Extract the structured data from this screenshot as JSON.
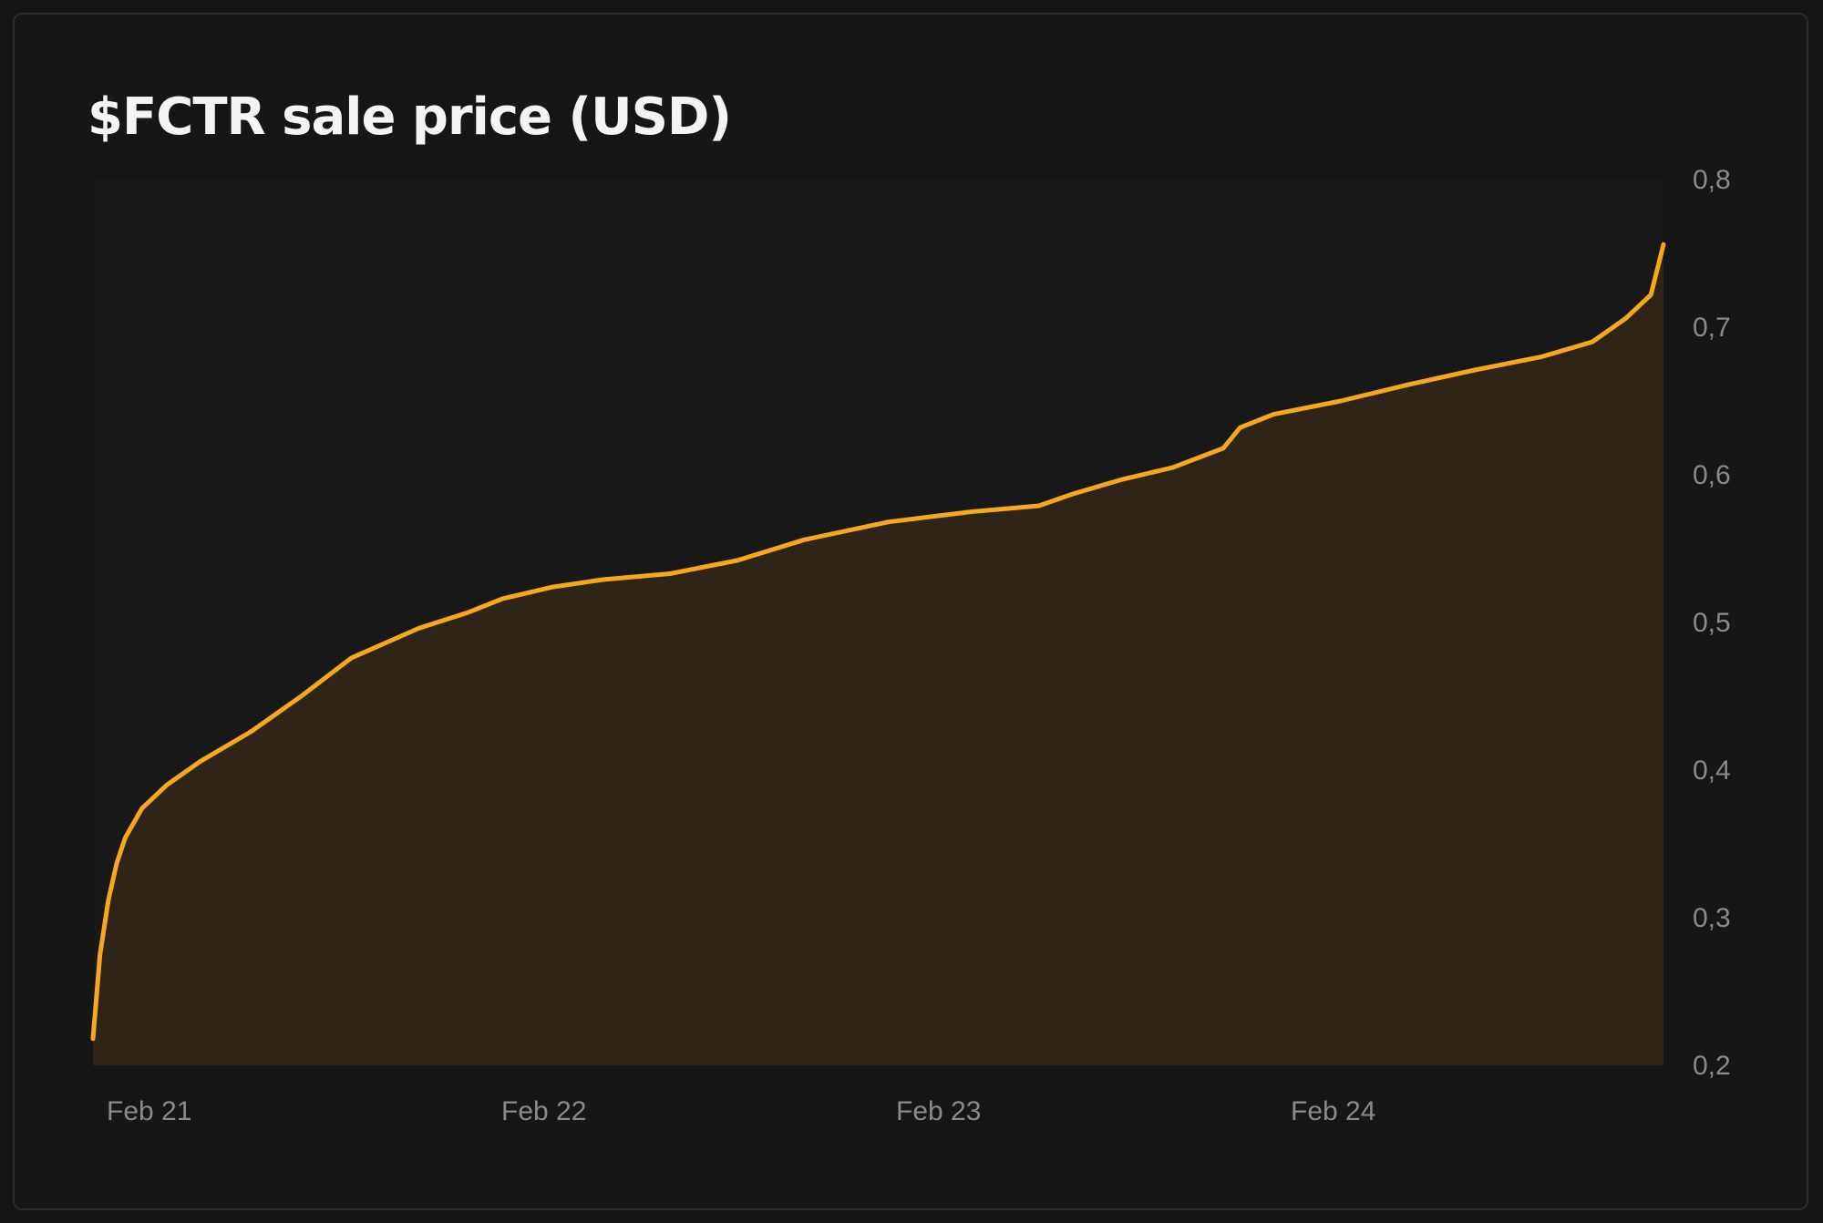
{
  "chart_data": {
    "type": "area",
    "title": "$FCTR sale price (USD)",
    "xlabel": "",
    "ylabel": "",
    "x_ticks": [
      "Feb 21",
      "Feb 22",
      "Feb 23",
      "Feb 24"
    ],
    "y_ticks": [
      "0,8",
      "0,7",
      "0,6",
      "0,5",
      "0,4",
      "0,3",
      "0,2"
    ],
    "ylim": [
      0.2,
      0.8
    ],
    "xlim": [
      "2024-02-20T23:35",
      "2024-02-24T21:15"
    ],
    "grid": false,
    "series": [
      {
        "color": "#f6a71b",
        "fill": "#2e2418",
        "x": [
          "2024-02-20T23:35",
          "2024-02-21T00:00",
          "2024-02-21T00:30",
          "2024-02-21T01:00",
          "2024-02-21T01:30",
          "2024-02-21T02:30",
          "2024-02-21T04:00",
          "2024-02-21T06:00",
          "2024-02-21T09:00",
          "2024-02-21T12:00",
          "2024-02-21T15:00",
          "2024-02-21T19:00",
          "2024-02-21T22:00",
          "2024-02-22T00:00",
          "2024-02-22T03:00",
          "2024-02-22T06:00",
          "2024-02-22T10:00",
          "2024-02-22T14:00",
          "2024-02-22T18:00",
          "2024-02-22T23:00",
          "2024-02-23T04:00",
          "2024-02-23T08:00",
          "2024-02-23T10:00",
          "2024-02-23T13:00",
          "2024-02-23T16:00",
          "2024-02-23T19:00",
          "2024-02-23T20:00",
          "2024-02-23T22:00",
          "2024-02-24T02:00",
          "2024-02-24T06:00",
          "2024-02-24T10:00",
          "2024-02-24T14:00",
          "2024-02-24T17:00",
          "2024-02-24T19:00",
          "2024-02-24T20:30",
          "2024-02-24T21:15"
        ],
        "values": [
          0.218,
          0.275,
          0.312,
          0.337,
          0.354,
          0.374,
          0.39,
          0.406,
          0.426,
          0.45,
          0.476,
          0.496,
          0.507,
          0.516,
          0.524,
          0.529,
          0.533,
          0.542,
          0.556,
          0.568,
          0.575,
          0.579,
          0.587,
          0.597,
          0.605,
          0.618,
          0.632,
          0.641,
          0.65,
          0.661,
          0.671,
          0.68,
          0.69,
          0.706,
          0.722,
          0.756
        ]
      }
    ]
  }
}
